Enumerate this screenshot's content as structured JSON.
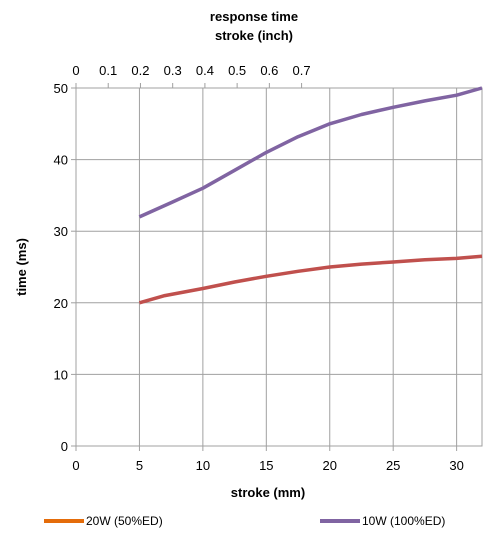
{
  "chart_data": {
    "type": "line",
    "title": "response time",
    "secondary_xlabel": "stroke (inch)",
    "xlabel": "stroke (mm)",
    "ylabel": "time (ms)",
    "xlim": [
      0,
      32
    ],
    "ylim": [
      0,
      50
    ],
    "x_ticks": [
      0,
      5,
      10,
      15,
      20,
      25,
      30
    ],
    "y_ticks": [
      0,
      10,
      20,
      30,
      40,
      50
    ],
    "secondary_x_ticks": [
      0,
      0.1,
      0.2,
      0.3,
      0.4,
      0.5,
      0.6,
      0.7
    ],
    "secondary_x_unit_factor_mm": 25.4,
    "grid": true,
    "legend_position": "bottom",
    "series": [
      {
        "name": "20W (50%ED)",
        "color": "#c0504d",
        "legend_color": "#e46c0a",
        "x": [
          5,
          7,
          10,
          12.5,
          15,
          17.5,
          20,
          22.5,
          25,
          27.5,
          30,
          32
        ],
        "y": [
          20,
          21,
          22,
          22.9,
          23.7,
          24.4,
          25,
          25.4,
          25.7,
          26,
          26.2,
          26.5
        ]
      },
      {
        "name": "10W (100%ED)",
        "color": "#8064a2",
        "legend_color": "#8064a2",
        "x": [
          5,
          7.5,
          10,
          12.5,
          15,
          17.5,
          20,
          22.5,
          25,
          27.5,
          30,
          32
        ],
        "y": [
          32,
          34,
          36,
          38.5,
          41,
          43.2,
          45,
          46.3,
          47.3,
          48.2,
          49,
          50
        ]
      }
    ]
  }
}
